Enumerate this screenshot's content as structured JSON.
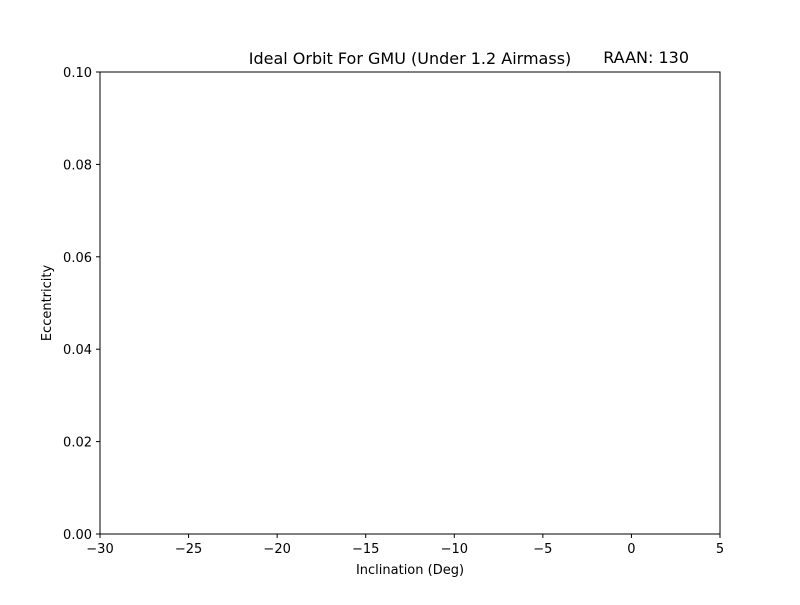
{
  "chart_data": {
    "type": "scatter",
    "title": "Ideal Orbit For GMU (Under 1.2 Airmass)",
    "title_right": "RAAN: 130",
    "xlabel": "Inclination (Deg)",
    "ylabel": "Eccentricity",
    "xlim": [
      -30,
      5
    ],
    "ylim": [
      0.0,
      0.1
    ],
    "xticks": [
      -30,
      -25,
      -20,
      -15,
      -10,
      -5,
      0,
      5
    ],
    "xtick_labels": [
      "−30",
      "−25",
      "−20",
      "−15",
      "−10",
      "−5",
      "0",
      "5"
    ],
    "yticks": [
      0.0,
      0.02,
      0.04,
      0.06,
      0.08,
      0.1
    ],
    "ytick_labels": [
      "0.00",
      "0.02",
      "0.04",
      "0.06",
      "0.08",
      "0.10"
    ],
    "grid": false,
    "series": [
      {
        "points": []
      }
    ]
  }
}
